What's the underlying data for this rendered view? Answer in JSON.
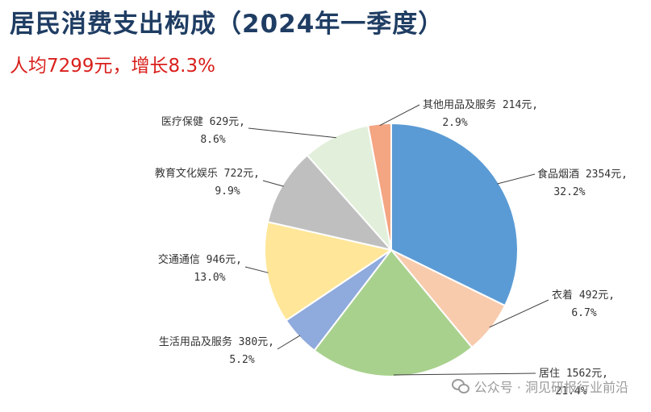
{
  "header": {
    "title": "居民消费支出构成（2024年一季度）",
    "subtitle": "人均7299元，增长8.3%"
  },
  "watermark": {
    "text": "公众号 · 洞见研报行业前沿",
    "icon": "wechat-icon"
  },
  "chart_data": {
    "type": "pie",
    "title": "居民消费支出构成（2024年一季度）",
    "subtitle": "人均7299元，增长8.3%",
    "unit": "元",
    "slices": [
      {
        "name": "食品烟酒",
        "value": 2354,
        "percent": "32.2%",
        "color": "#5b9bd5"
      },
      {
        "name": "衣着",
        "value": 492,
        "percent": "6.7%",
        "color": "#f8cbad"
      },
      {
        "name": "居住",
        "value": 1562,
        "percent": "21.4%",
        "color": "#a9d18e"
      },
      {
        "name": "生活用品及服务",
        "value": 380,
        "percent": "5.2%",
        "color": "#8faadc"
      },
      {
        "name": "交通通信",
        "value": 946,
        "percent": "13.0%",
        "color": "#ffe699"
      },
      {
        "name": "教育文化娱乐",
        "value": 722,
        "percent": "9.9%",
        "color": "#bfbfbf"
      },
      {
        "name": "医疗保健",
        "value": 629,
        "percent": "8.6%",
        "color": "#e2efda"
      },
      {
        "name": "其他用品及服务",
        "value": 214,
        "percent": "2.9%",
        "color": "#f4a582"
      }
    ]
  }
}
